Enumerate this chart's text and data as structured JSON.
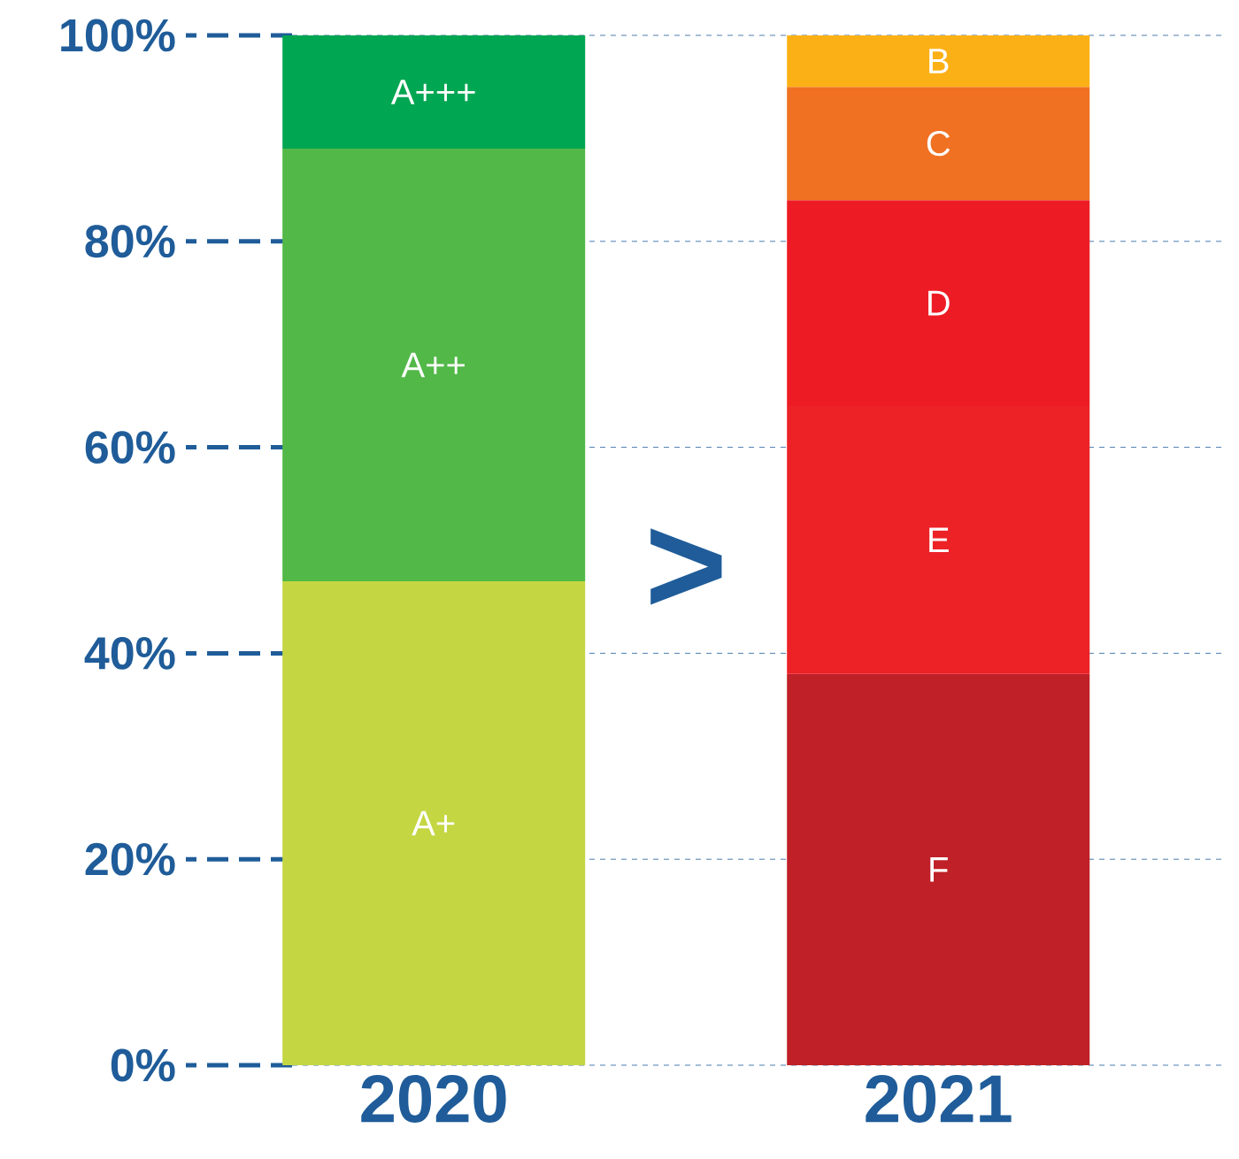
{
  "chart_data": {
    "type": "bar",
    "stacked": true,
    "categories": [
      "2020",
      "2021"
    ],
    "series": [
      {
        "name": "A+",
        "color": "#c4d642",
        "values": [
          47,
          null
        ]
      },
      {
        "name": "A++",
        "color": "#52b848",
        "values": [
          42,
          null
        ]
      },
      {
        "name": "A+++",
        "color": "#00a651",
        "values": [
          11,
          null
        ]
      },
      {
        "name": "F",
        "color": "#c02027",
        "values": [
          null,
          38
        ]
      },
      {
        "name": "E",
        "color": "#ec2227",
        "values": [
          null,
          26
        ]
      },
      {
        "name": "D",
        "color": "#ed1c24",
        "values": [
          null,
          20
        ]
      },
      {
        "name": "C",
        "color": "#f07122",
        "values": [
          null,
          11
        ]
      },
      {
        "name": "B",
        "color": "#fbb116",
        "values": [
          null,
          5
        ]
      }
    ],
    "ylim": [
      0,
      100
    ],
    "yticks": [
      {
        "value": 0,
        "label": "0%"
      },
      {
        "value": 20,
        "label": "20%"
      },
      {
        "value": 40,
        "label": "40%"
      },
      {
        "value": 60,
        "label": "60%"
      },
      {
        "value": 80,
        "label": "80%"
      },
      {
        "value": 100,
        "label": "100%"
      }
    ],
    "grid": "y",
    "line_style": "dashed",
    "annotations": [
      ">"
    ]
  }
}
